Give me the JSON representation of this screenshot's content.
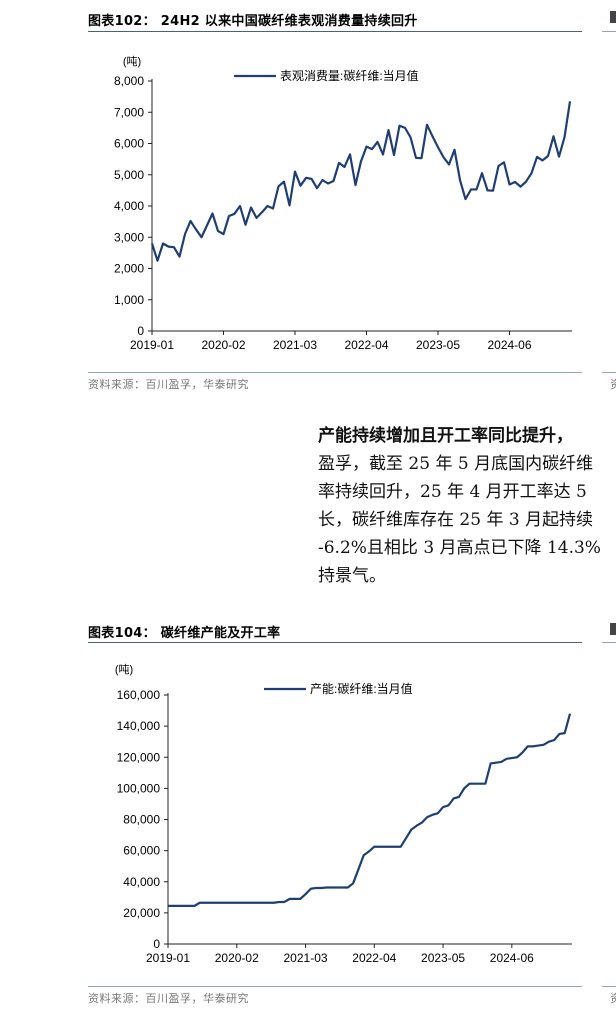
{
  "figure1": {
    "title": "图表102：  24H2 以来中国碳纤维表观消费量持续回升",
    "source": "资料来源：百川盈孚，华泰研究",
    "edge_fragment": "资",
    "chart_data": {
      "type": "line",
      "unit_label": "(吨)",
      "ylim": [
        0,
        8000
      ],
      "y_ticks": [
        "0",
        "1,000",
        "2,000",
        "3,000",
        "4,000",
        "5,000",
        "6,000",
        "7,000",
        "8,000"
      ],
      "y_tick_values": [
        0,
        1000,
        2000,
        3000,
        4000,
        5000,
        6000,
        7000,
        8000
      ],
      "x_ticks": [
        "2019-01",
        "2020-02",
        "2021-03",
        "2022-04",
        "2023-05",
        "2024-06"
      ],
      "x_start": "2019-01",
      "legend_position": "top-center",
      "color": "#1f3f73",
      "series": [
        {
          "name": "表观消费量:碳纤维:当月值",
          "values": [
            2800,
            2250,
            2800,
            2700,
            2680,
            2380,
            3100,
            3520,
            3250,
            3000,
            3380,
            3760,
            3200,
            3100,
            3680,
            3750,
            4000,
            3400,
            3950,
            3620,
            3800,
            4000,
            3920,
            4630,
            4780,
            4020,
            5100,
            4650,
            4900,
            4870,
            4570,
            4830,
            4720,
            4800,
            5380,
            5250,
            5650,
            4670,
            5430,
            5900,
            5820,
            6050,
            5650,
            6430,
            5630,
            6570,
            6500,
            6200,
            5540,
            5530,
            6600,
            6230,
            5880,
            5560,
            5330,
            5800,
            4830,
            4220,
            4530,
            4530,
            5050,
            4500,
            4490,
            5280,
            5400,
            4690,
            4770,
            4620,
            4780,
            5050,
            5570,
            5460,
            5600,
            6230,
            5580,
            6200,
            7350
          ]
        }
      ]
    }
  },
  "paragraph": {
    "line1": "产能持续增加且开工率同比提升，",
    "line2": "盈孚，截至 25 年 5 月底国内碳纤维",
    "line3": "率持续回升，25 年 4 月开工率达 5",
    "line4": "长，碳纤维库存在 25 年 3 月起持续",
    "line5": "-6.2%且相比 3 月高点已下降 14.3%",
    "line6": "持景气。"
  },
  "figure2": {
    "title": "图表104：  碳纤维产能及开工率",
    "source": "资料来源：百川盈孚，华泰研究",
    "edge_fragment": "资",
    "chart_data": {
      "type": "line",
      "unit_label": "(吨)",
      "ylim": [
        0,
        160000
      ],
      "y_ticks": [
        "0",
        "20,000",
        "40,000",
        "60,000",
        "80,000",
        "100,000",
        "120,000",
        "140,000",
        "160,000"
      ],
      "y_tick_values": [
        0,
        20000,
        40000,
        60000,
        80000,
        100000,
        120000,
        140000,
        160000
      ],
      "x_ticks": [
        "2019-01",
        "2020-02",
        "2021-03",
        "2022-04",
        "2023-05",
        "2024-06"
      ],
      "x_start": "2019-01",
      "legend_position": "top-center",
      "color": "#1f3f73",
      "series": [
        {
          "name": "产能:碳纤维:当月值",
          "values": [
            24500,
            24500,
            24500,
            24500,
            24500,
            24500,
            26500,
            26500,
            26500,
            26500,
            26500,
            26500,
            26500,
            26500,
            26500,
            26500,
            26500,
            26500,
            26500,
            26500,
            26500,
            27000,
            27000,
            29000,
            29000,
            29000,
            32000,
            35500,
            36000,
            36000,
            36300,
            36300,
            36300,
            36300,
            36300,
            39000,
            48000,
            57000,
            59500,
            62500,
            62500,
            62500,
            62500,
            62500,
            62500,
            68000,
            73500,
            76000,
            78000,
            81500,
            83000,
            84000,
            88000,
            89000,
            93500,
            94500,
            100000,
            103000,
            103000,
            103000,
            103000,
            116000,
            116500,
            117000,
            119000,
            119500,
            120000,
            123000,
            127000,
            127000,
            127500,
            128000,
            130000,
            131000,
            135000,
            135500,
            148000
          ]
        }
      ]
    }
  }
}
